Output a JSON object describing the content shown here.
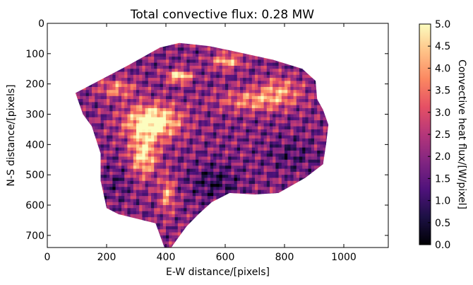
{
  "chart_data": {
    "type": "heatmap",
    "title": "Total convective flux: 0.28 MW",
    "xlabel": "E-W distance/[pixels]",
    "ylabel": "N-S distance/[pixels]",
    "xlim": [
      0,
      1150
    ],
    "ylim": [
      740,
      0
    ],
    "x_ticks": [
      0,
      200,
      400,
      600,
      800,
      1000
    ],
    "y_ticks": [
      0,
      100,
      200,
      300,
      400,
      500,
      600,
      700
    ],
    "colorbar": {
      "label": "Convective heat flux/[W/pixel]",
      "range": [
        0.0,
        5.0
      ],
      "ticks": [
        "0.0",
        "0.5",
        "1.0",
        "1.5",
        "2.0",
        "2.5",
        "3.0",
        "3.5",
        "4.0",
        "4.5",
        "5.0"
      ],
      "colormap": "magma",
      "colors": [
        "#000004",
        "#1c1044",
        "#4f127b",
        "#812581",
        "#b5367a",
        "#e55064",
        "#fb8761",
        "#fec287",
        "#fcfdbf"
      ]
    },
    "masked_region_outline": [
      [
        95,
        230
      ],
      [
        270,
        140
      ],
      [
        380,
        80
      ],
      [
        445,
        65
      ],
      [
        545,
        75
      ],
      [
        610,
        88
      ],
      [
        760,
        120
      ],
      [
        860,
        150
      ],
      [
        905,
        190
      ],
      [
        910,
        250
      ],
      [
        930,
        285
      ],
      [
        948,
        335
      ],
      [
        940,
        400
      ],
      [
        930,
        465
      ],
      [
        870,
        510
      ],
      [
        780,
        560
      ],
      [
        700,
        565
      ],
      [
        615,
        560
      ],
      [
        555,
        590
      ],
      [
        510,
        630
      ],
      [
        470,
        670
      ],
      [
        440,
        710
      ],
      [
        418,
        740
      ],
      [
        395,
        740
      ],
      [
        380,
        700
      ],
      [
        365,
        660
      ],
      [
        240,
        630
      ],
      [
        200,
        610
      ],
      [
        180,
        520
      ],
      [
        180,
        430
      ],
      [
        150,
        340
      ],
      [
        120,
        300
      ],
      [
        95,
        230
      ]
    ],
    "hot_regions": [
      {
        "center": [
          350,
          320
        ],
        "radii": [
          90,
          55
        ],
        "value": 5.0
      },
      {
        "center": [
          440,
          170
        ],
        "radii": [
          40,
          20
        ],
        "value": 4.5
      },
      {
        "center": [
          320,
          430
        ],
        "radii": [
          45,
          70
        ],
        "value": 4.3
      },
      {
        "center": [
          700,
          250
        ],
        "radii": [
          120,
          35
        ],
        "value": 3.5
      },
      {
        "center": [
          600,
          120
        ],
        "radii": [
          50,
          25
        ],
        "value": 3.8
      },
      {
        "center": [
          230,
          210
        ],
        "radii": [
          60,
          30
        ],
        "value": 3.4
      },
      {
        "center": [
          780,
          210
        ],
        "radii": [
          70,
          40
        ],
        "value": 3.2
      },
      {
        "center": [
          400,
          560
        ],
        "radii": [
          25,
          60
        ],
        "value": 3.6
      }
    ],
    "low_regions": [
      {
        "center": [
          560,
          520
        ],
        "radii": [
          80,
          60
        ],
        "value": 0.8
      },
      {
        "center": [
          820,
          430
        ],
        "radii": [
          90,
          55
        ],
        "value": 1.2
      },
      {
        "center": [
          230,
          520
        ],
        "radii": [
          50,
          60
        ],
        "value": 1.3
      }
    ],
    "base_value": 1.9
  }
}
